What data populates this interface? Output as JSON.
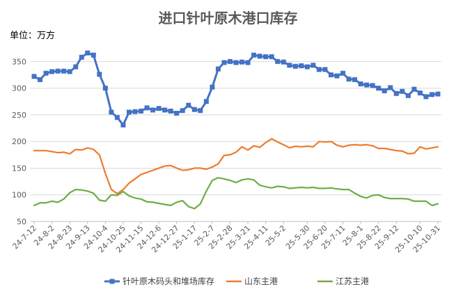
{
  "chart_data": {
    "type": "line",
    "title": "进口针叶原木港口库存",
    "unit_label": "单位：万方",
    "ylim": [
      50,
      370
    ],
    "yticks": [
      50,
      100,
      150,
      200,
      250,
      300,
      350
    ],
    "grid": "horizontal",
    "legend_position": "bottom",
    "x_tick_labels": [
      "24-7-12",
      "24-8-2",
      "24-8-23",
      "24-9-13",
      "24-10-4",
      "24-10-25",
      "24-11-15",
      "24-12-6",
      "24-12-27",
      "25-1-17",
      "25-2-7",
      "25-2-28",
      "25-3-21",
      "25-4-11",
      "25-5-2",
      "25-5-30",
      "25-6-20",
      "25-7-11",
      "25-8-1",
      "25-8-22",
      "25-9-12",
      "25-10-10",
      "25-10-31"
    ],
    "x": [
      "24-7-12",
      "24-7-19",
      "24-7-26",
      "24-8-2",
      "24-8-9",
      "24-8-16",
      "24-8-23",
      "24-8-30",
      "24-9-6",
      "24-9-13",
      "24-9-20",
      "24-9-27",
      "24-10-4",
      "24-10-11",
      "24-10-18",
      "24-10-25",
      "24-11-1",
      "24-11-8",
      "24-11-15",
      "24-11-22",
      "24-11-29",
      "24-12-6",
      "24-12-13",
      "24-12-20",
      "24-12-27",
      "25-1-3",
      "25-1-10",
      "25-1-17",
      "25-1-24",
      "25-1-31",
      "25-2-7",
      "25-2-14",
      "25-2-21",
      "25-2-28",
      "25-3-7",
      "25-3-14",
      "25-3-21",
      "25-3-28",
      "25-4-4",
      "25-4-11",
      "25-4-18",
      "25-4-25",
      "25-5-2",
      "25-5-9",
      "25-5-16",
      "25-5-23",
      "25-5-30",
      "25-6-6",
      "25-6-13",
      "25-6-20",
      "25-6-27",
      "25-7-4",
      "25-7-11",
      "25-7-18",
      "25-7-25",
      "25-8-1",
      "25-8-8",
      "25-8-15",
      "25-8-22",
      "25-8-29",
      "25-9-5",
      "25-9-12",
      "25-9-19",
      "25-9-26",
      "25-10-3",
      "25-10-10",
      "25-10-17",
      "25-10-24",
      "25-10-31"
    ],
    "series": [
      {
        "name": "针叶原木码头和堆场库存",
        "color": "#4472C4",
        "marker": "square",
        "values": [
          322,
          316,
          328,
          331,
          332,
          332,
          331,
          340,
          358,
          366,
          362,
          326,
          300,
          255,
          245,
          231,
          255,
          256,
          257,
          263,
          259,
          262,
          259,
          257,
          253,
          258,
          268,
          260,
          258,
          275,
          302,
          336,
          348,
          350,
          348,
          349,
          348,
          362,
          360,
          359,
          359,
          350,
          349,
          343,
          341,
          342,
          340,
          343,
          335,
          335,
          325,
          323,
          328,
          317,
          316,
          308,
          306,
          305,
          300,
          295,
          301,
          290,
          294,
          286,
          298,
          291,
          284,
          288,
          289
        ]
      },
      {
        "name": "山东主港",
        "color": "#ED7D31",
        "marker": "none",
        "values": [
          183,
          183,
          183,
          181,
          179,
          180,
          177,
          185,
          184,
          188,
          185,
          175,
          140,
          110,
          102,
          110,
          122,
          130,
          138,
          142,
          146,
          150,
          154,
          155,
          150,
          146,
          147,
          150,
          150,
          148,
          152,
          158,
          174,
          175,
          180,
          190,
          184,
          192,
          189,
          198,
          205,
          199,
          194,
          188,
          191,
          190,
          191,
          190,
          200,
          199,
          200,
          193,
          190,
          193,
          194,
          193,
          194,
          192,
          187,
          187,
          185,
          183,
          182,
          177,
          178,
          190,
          186,
          188,
          190
        ]
      },
      {
        "name": "江苏主港",
        "color": "#70AD47",
        "marker": "none",
        "values": [
          80,
          85,
          85,
          88,
          86,
          92,
          104,
          110,
          109,
          107,
          103,
          90,
          88,
          100,
          99,
          106,
          98,
          94,
          92,
          87,
          86,
          84,
          82,
          80,
          86,
          89,
          78,
          74,
          83,
          107,
          127,
          132,
          130,
          127,
          123,
          128,
          130,
          128,
          118,
          115,
          113,
          116,
          115,
          112,
          113,
          114,
          113,
          114,
          112,
          112,
          113,
          111,
          110,
          110,
          103,
          97,
          94,
          99,
          100,
          95,
          93,
          93,
          93,
          92,
          88,
          88,
          88,
          80,
          83
        ]
      }
    ]
  }
}
